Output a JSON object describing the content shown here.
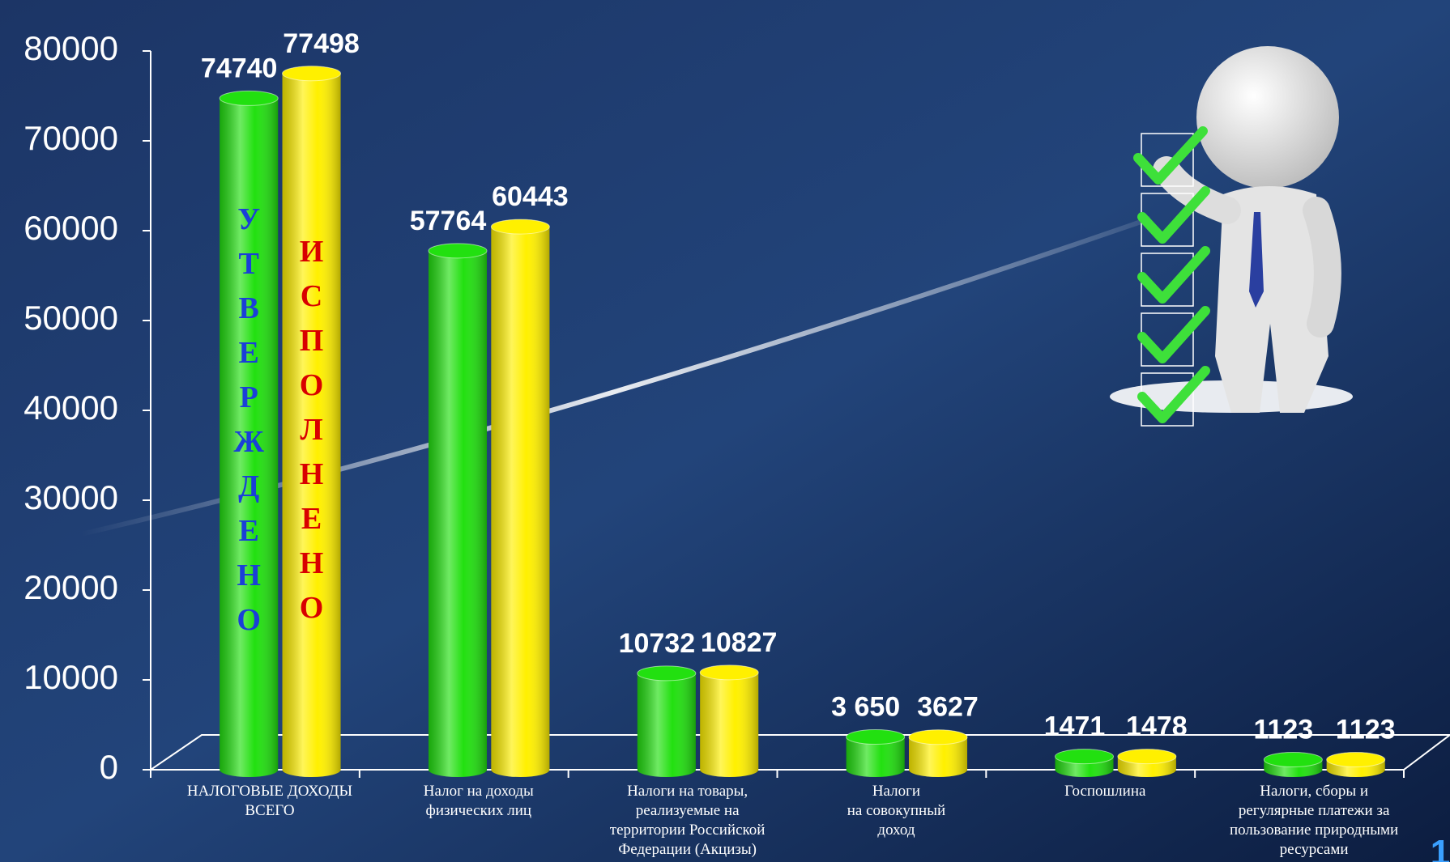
{
  "chart_data": {
    "type": "bar",
    "categories": [
      "НАЛОГОВЫЕ ДОХОДЫ\nВСЕГО",
      "Налог на доходы\nфизических лиц",
      "Налоги на товары,\nреализуемые на\nтерритории Российской\nФедерации (Акцизы)",
      "Налоги\nна совокупный\nдоход",
      "Госпошлина",
      "Налоги, сборы и\nрегулярные платежи за\nпользование природными\nресурсами"
    ],
    "series": [
      {
        "name": "УТВЕРЖДЕНО",
        "color": "#22e010",
        "label_color": "#1a3fd8",
        "values": [
          74740,
          57764,
          10732,
          3650,
          1471,
          1123
        ],
        "value_labels": [
          "74740",
          "57764",
          "10732",
          "3 650",
          "1471",
          "1123"
        ]
      },
      {
        "name": "ИСПОЛНЕНО",
        "color": "#fff000",
        "label_color": "#d80000",
        "values": [
          77498,
          60443,
          10827,
          3627,
          1478,
          1123
        ]
      }
    ],
    "ylim": [
      0,
      80000
    ],
    "yticks": [
      0,
      10000,
      20000,
      30000,
      40000,
      50000,
      60000,
      70000,
      80000
    ],
    "page_number": "1"
  }
}
